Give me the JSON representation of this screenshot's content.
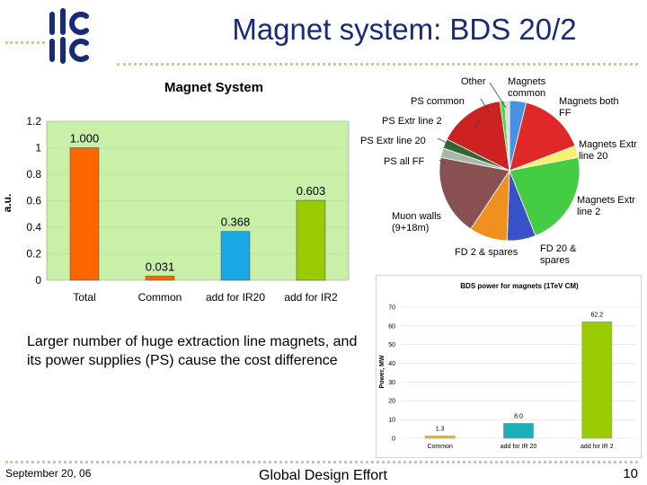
{
  "slide": {
    "title": "Magnet system: BDS 20/2",
    "logo_text": "ilc",
    "body_text": "Larger number of huge extraction line magnets, and its power supplies (PS) cause the cost difference",
    "footer": {
      "date": "September 20, 06",
      "center": "Global Design Effort",
      "page": "10"
    },
    "colors": {
      "title": "#1a2a7a",
      "logo": "#1a2a7a",
      "dots": "#c8cc9a"
    }
  },
  "chart_data": [
    {
      "type": "bar",
      "title": "Magnet System",
      "ylabel": "a.u.",
      "categories": [
        "Total",
        "Common",
        "add for IR20",
        "add for IR2"
      ],
      "values": [
        1.0,
        0.031,
        0.368,
        0.603
      ],
      "value_labels": [
        "1.000",
        "0.031",
        "0.368",
        "0.603"
      ],
      "colors": [
        "#ff6600",
        "#ff6600",
        "#1aa7e8",
        "#99cc00"
      ],
      "ylim": [
        0,
        1.2
      ],
      "yticks": [
        "0",
        "0.2",
        "0.4",
        "0.6",
        "0.8",
        "1",
        "1.2"
      ],
      "background": "#c8f0a8",
      "grid": true
    },
    {
      "type": "pie",
      "labels": [
        "Magnets common",
        "Magnets both FF",
        "Magnets Extr line 20",
        "Magnets Extr line 2",
        "FD 20 & spares",
        "FD 2 & spares",
        "Muon walls (9+18m)",
        "PS all FF",
        "PS Extr line 20",
        "PS Extr line 2",
        "PS common",
        "Other"
      ],
      "values": [
        3.5,
        14,
        2.5,
        20,
        6,
        8,
        17,
        2,
        2,
        14,
        1,
        1
      ],
      "colors": [
        "#4a90e2",
        "#e02828",
        "#f8f070",
        "#44cc44",
        "#3850c8",
        "#f09020",
        "#885050",
        "#a8b8a8",
        "#336633",
        "#cc2222",
        "#44dd44",
        "#dddddd"
      ]
    },
    {
      "type": "bar",
      "title": "BDS power for magnets (1TeV CM)",
      "ylabel": "Power, MW",
      "categories": [
        "Common",
        "add for IR 20",
        "add for IR 2"
      ],
      "values": [
        1.3,
        8.0,
        62.2
      ],
      "value_labels": [
        "1.3",
        "8.0",
        "62.2"
      ],
      "colors": [
        "#e8c020",
        "#1ab0b8",
        "#99cc00"
      ],
      "ylim": [
        0,
        70
      ],
      "yticks": [
        "0",
        "10",
        "20",
        "30",
        "40",
        "50",
        "60",
        "70"
      ],
      "grid": true
    }
  ]
}
